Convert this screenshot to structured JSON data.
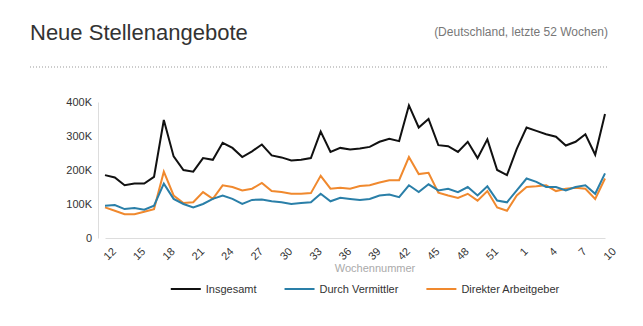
{
  "chart_data": {
    "type": "line",
    "title": "Neue Stellenangebote",
    "subtitle": "(Deutschland, letzte 52 Wochen)",
    "x_label": "Wochennummer",
    "categories": [
      "12",
      null,
      null,
      "15",
      null,
      null,
      "18",
      null,
      null,
      "21",
      null,
      null,
      "24",
      null,
      null,
      "27",
      null,
      null,
      "30",
      null,
      null,
      "33",
      null,
      null,
      "36",
      null,
      null,
      "39",
      null,
      null,
      "42",
      null,
      null,
      "45",
      null,
      null,
      "48",
      null,
      null,
      "51",
      null,
      null,
      "1",
      null,
      null,
      "4",
      null,
      null,
      "7",
      null,
      null,
      "10"
    ],
    "series": [
      {
        "name": "Insgesamt",
        "color": "#111111",
        "values": [
          185000,
          178000,
          155000,
          160000,
          160000,
          180000,
          347000,
          240000,
          200000,
          195000,
          235000,
          230000,
          280000,
          265000,
          238000,
          255000,
          275000,
          243000,
          237000,
          228000,
          230000,
          235000,
          313000,
          253000,
          265000,
          260000,
          263000,
          268000,
          283000,
          292000,
          285000,
          390000,
          325000,
          350000,
          273000,
          270000,
          253000,
          283000,
          235000,
          290000,
          200000,
          185000,
          262000,
          325000,
          315000,
          305000,
          298000,
          272000,
          283000,
          305000,
          245000,
          365000
        ]
      },
      {
        "name": "Durch Vermittler",
        "color": "#2a7fa8",
        "values": [
          95000,
          97000,
          85000,
          88000,
          83000,
          95000,
          160000,
          115000,
          100000,
          90000,
          100000,
          115000,
          125000,
          115000,
          100000,
          112000,
          113000,
          108000,
          105000,
          100000,
          103000,
          105000,
          130000,
          108000,
          118000,
          115000,
          112000,
          115000,
          125000,
          128000,
          120000,
          155000,
          135000,
          158000,
          140000,
          145000,
          135000,
          150000,
          125000,
          152000,
          110000,
          105000,
          140000,
          175000,
          165000,
          150000,
          150000,
          140000,
          150000,
          155000,
          130000,
          190000
        ]
      },
      {
        "name": "Direkter Arbeitgeber",
        "color": "#f0892e",
        "values": [
          90000,
          80000,
          70000,
          70000,
          77000,
          85000,
          195000,
          125000,
          103000,
          105000,
          135000,
          115000,
          155000,
          150000,
          140000,
          145000,
          162000,
          138000,
          135000,
          130000,
          130000,
          132000,
          183000,
          145000,
          148000,
          145000,
          153000,
          155000,
          163000,
          170000,
          170000,
          238000,
          188000,
          192000,
          133000,
          125000,
          118000,
          130000,
          110000,
          138000,
          90000,
          80000,
          125000,
          150000,
          152000,
          155000,
          138000,
          145000,
          148000,
          145000,
          115000,
          175000
        ]
      }
    ],
    "ylim": [
      0,
      400000
    ],
    "yticks": [
      0,
      {
        "value": 100000,
        "label": "100K"
      },
      {
        "value": 200000,
        "label": "200K"
      },
      {
        "value": 300000,
        "label": "300K"
      },
      {
        "value": 400000,
        "label": "400K"
      }
    ],
    "grid": false,
    "legend": "bottom"
  }
}
